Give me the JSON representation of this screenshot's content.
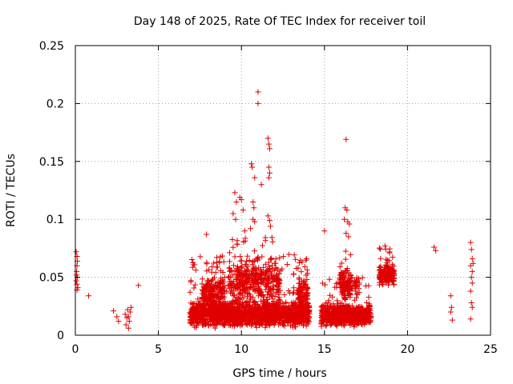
{
  "chart_data": {
    "type": "scatter",
    "title": "Day 148 of 2025, Rate Of TEC Index for receiver toil",
    "xlabel": "GPS time / hours",
    "ylabel": "ROTI / TECUs",
    "xlim": [
      0,
      25
    ],
    "ylim": [
      0,
      0.25
    ],
    "xticks": [
      "0",
      "5",
      "10",
      "15",
      "20",
      "25"
    ],
    "yticks": [
      "0",
      "0.05",
      "0.1",
      "0.15",
      "0.2",
      "0.25"
    ],
    "grid": true,
    "marker": "+",
    "color": "#e00000",
    "series": [
      {
        "name": "ROTI",
        "points": [
          [
            0.05,
            0.072
          ],
          [
            0.1,
            0.068
          ],
          [
            0.1,
            0.06
          ],
          [
            0.08,
            0.055
          ],
          [
            0.12,
            0.05
          ],
          [
            0.05,
            0.047
          ],
          [
            0.1,
            0.044
          ],
          [
            0.15,
            0.041
          ],
          [
            0.1,
            0.039
          ],
          [
            0.12,
            0.064
          ],
          [
            0.07,
            0.052
          ],
          [
            0.8,
            0.034
          ],
          [
            2.3,
            0.021
          ],
          [
            2.5,
            0.016
          ],
          [
            2.6,
            0.012
          ],
          [
            3.0,
            0.018
          ],
          [
            3.05,
            0.009
          ],
          [
            3.1,
            0.015
          ],
          [
            3.15,
            0.022
          ],
          [
            3.2,
            0.006
          ],
          [
            3.25,
            0.012
          ],
          [
            3.3,
            0.02
          ],
          [
            3.35,
            0.024
          ],
          [
            3.2,
            0.016
          ],
          [
            3.8,
            0.043
          ],
          [
            7.9,
            0.087
          ],
          [
            9.6,
            0.123
          ],
          [
            9.7,
            0.115
          ],
          [
            9.9,
            0.119
          ],
          [
            10.0,
            0.117
          ],
          [
            9.5,
            0.105
          ],
          [
            9.65,
            0.1
          ],
          [
            10.1,
            0.108
          ],
          [
            10.2,
            0.09
          ],
          [
            10.6,
            0.148
          ],
          [
            10.65,
            0.145
          ],
          [
            10.8,
            0.136
          ],
          [
            10.7,
            0.115
          ],
          [
            10.75,
            0.11
          ],
          [
            10.7,
            0.1
          ],
          [
            10.8,
            0.098
          ],
          [
            10.55,
            0.092
          ],
          [
            11.0,
            0.21
          ],
          [
            11.0,
            0.2
          ],
          [
            11.2,
            0.13
          ],
          [
            11.6,
            0.17
          ],
          [
            11.65,
            0.165
          ],
          [
            11.7,
            0.161
          ],
          [
            11.65,
            0.145
          ],
          [
            11.7,
            0.14
          ],
          [
            11.65,
            0.136
          ],
          [
            11.6,
            0.103
          ],
          [
            11.7,
            0.099
          ],
          [
            11.75,
            0.094
          ],
          [
            15.0,
            0.09
          ],
          [
            16.3,
            0.169
          ],
          [
            16.25,
            0.11
          ],
          [
            16.35,
            0.108
          ],
          [
            16.2,
            0.1
          ],
          [
            16.4,
            0.098
          ],
          [
            16.5,
            0.096
          ],
          [
            16.3,
            0.088
          ],
          [
            16.45,
            0.085
          ],
          [
            21.6,
            0.076
          ],
          [
            21.7,
            0.073
          ],
          [
            22.6,
            0.034
          ],
          [
            22.65,
            0.024
          ],
          [
            22.6,
            0.02
          ],
          [
            22.7,
            0.013
          ],
          [
            23.8,
            0.08
          ],
          [
            23.85,
            0.074
          ],
          [
            23.9,
            0.066
          ],
          [
            23.8,
            0.06
          ],
          [
            23.9,
            0.055
          ],
          [
            23.85,
            0.05
          ],
          [
            23.9,
            0.045
          ],
          [
            23.8,
            0.038
          ],
          [
            23.85,
            0.028
          ],
          [
            23.9,
            0.024
          ],
          [
            23.8,
            0.014
          ],
          [
            23.95,
            0.062
          ]
        ]
      }
    ],
    "dense_clusters": [
      {
        "x_range": [
          6.9,
          14.1
        ],
        "y_median": 0.018,
        "y_spread": 0.012,
        "count": 1700,
        "upper_tail": 0.07
      },
      {
        "x_range": [
          7.6,
          9.0
        ],
        "y_median": 0.038,
        "y_spread": 0.012,
        "count": 160,
        "upper_tail": 0.068
      },
      {
        "x_range": [
          9.2,
          12.3
        ],
        "y_median": 0.045,
        "y_spread": 0.018,
        "count": 320,
        "upper_tail": 0.085
      },
      {
        "x_range": [
          13.4,
          14.0
        ],
        "y_median": 0.035,
        "y_spread": 0.015,
        "count": 90,
        "upper_tail": 0.073
      },
      {
        "x_range": [
          14.8,
          17.8
        ],
        "y_median": 0.017,
        "y_spread": 0.01,
        "count": 700,
        "upper_tail": 0.05
      },
      {
        "x_range": [
          15.9,
          16.6
        ],
        "y_median": 0.045,
        "y_spread": 0.015,
        "count": 120,
        "upper_tail": 0.075
      },
      {
        "x_range": [
          16.8,
          17.1
        ],
        "y_median": 0.045,
        "y_spread": 0.006,
        "count": 20,
        "upper_tail": 0.055
      },
      {
        "x_range": [
          18.3,
          19.2
        ],
        "y_median": 0.052,
        "y_spread": 0.01,
        "count": 160,
        "upper_tail": 0.08
      }
    ]
  }
}
